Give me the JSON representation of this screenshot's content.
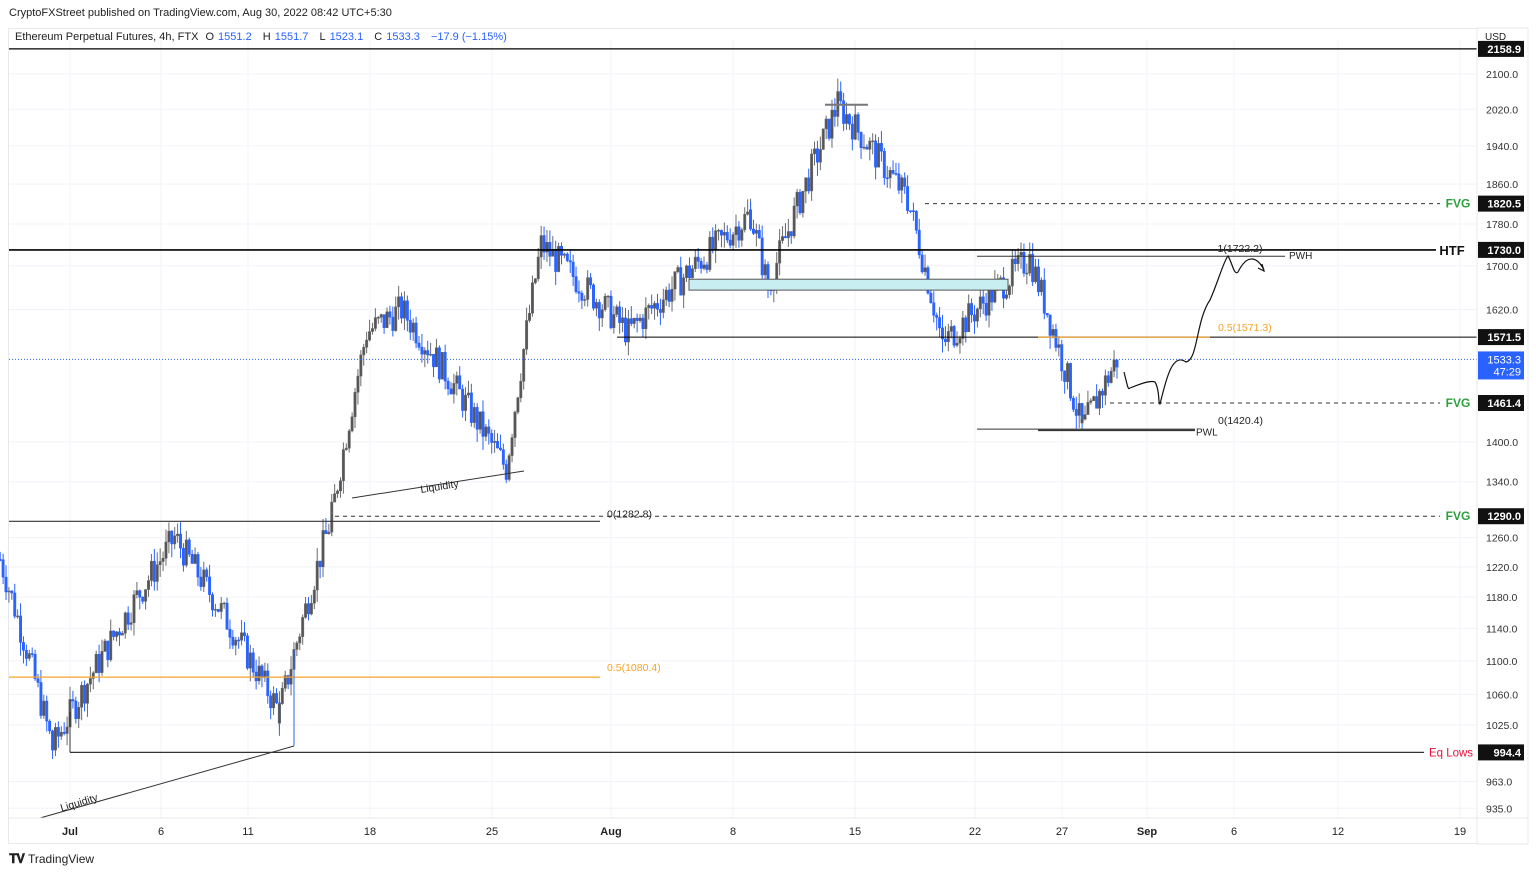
{
  "header": {
    "published": "CryptoFXStreet published on TradingView.com, Aug 30, 2022 08:42 UTC+5:30",
    "symbol": "Ethereum Perpetual Futures, 4h, FTX",
    "open_label": "O",
    "open": "1551.2",
    "high_label": "H",
    "high": "1551.7",
    "low_label": "L",
    "low": "1523.1",
    "close_label": "C",
    "close": "1533.3",
    "change": "−17.9 (−1.15%)"
  },
  "footer": {
    "brand": "TradingView",
    "logo_icon": "tradingview-logo-icon"
  },
  "colors": {
    "up": "#6b6b6b",
    "down": "#2962ff",
    "grid": "#f0f3fa",
    "fib_mid": "#f7a428",
    "fvg": "#2e9e3e",
    "eq_lows": "#e8113a",
    "ob_fill": "#c8eef2",
    "last_price": "#2962ff"
  },
  "chart_data": {
    "type": "candlestick",
    "title": "Ethereum Perpetual Futures, 4h, FTX",
    "xlabel": "",
    "ylabel": "USD",
    "y_scale": "log",
    "ylim": [
      920,
      2185
    ],
    "x_ticks": [
      "Jul",
      "6",
      "11",
      "18",
      "25",
      "Aug",
      "8",
      "15",
      "22",
      "27",
      "Sep",
      "6",
      "12",
      "19"
    ],
    "y_ticks": [
      2100.0,
      2020.0,
      1940.0,
      1860.0,
      1780.0,
      1700.0,
      1620.0,
      1400.0,
      1340.0,
      1260.0,
      1220.0,
      1180.0,
      1140.0,
      1100.0,
      1060.0,
      1025.0,
      963.0,
      935.0
    ],
    "last_price": {
      "value": 1533.3,
      "countdown": "47:29"
    },
    "ohlc_last": {
      "open": 1551.2,
      "high": 1551.7,
      "low": 1523.1,
      "close": 1533.3,
      "change": -17.9,
      "change_pct": -1.15
    },
    "approx_path": [
      {
        "date": "Jun 27",
        "price": 1230
      },
      {
        "date": "Jun 30",
        "price": 1000
      },
      {
        "date": "Jul 7",
        "price": 1260
      },
      {
        "date": "Jul 13",
        "price": 1040
      },
      {
        "date": "Jul 16",
        "price": 1290
      },
      {
        "date": "Jul 18",
        "price": 1580
      },
      {
        "date": "Jul 20",
        "price": 1620
      },
      {
        "date": "Jul 26",
        "price": 1360
      },
      {
        "date": "Jul 28",
        "price": 1740
      },
      {
        "date": "Aug 2",
        "price": 1580
      },
      {
        "date": "Aug 9",
        "price": 1800
      },
      {
        "date": "Aug 10",
        "price": 1660
      },
      {
        "date": "Aug 14",
        "price": 2030
      },
      {
        "date": "Aug 18",
        "price": 1830
      },
      {
        "date": "Aug 20",
        "price": 1560
      },
      {
        "date": "Aug 25",
        "price": 1715
      },
      {
        "date": "Aug 28",
        "price": 1420
      },
      {
        "date": "Aug 30",
        "price": 1533
      }
    ],
    "horizontal_levels": [
      {
        "label": "",
        "price": 2158.9,
        "style": "solid",
        "color": "#000000"
      },
      {
        "label": "FVG",
        "price": 1820.5,
        "style": "dashed",
        "color": "#2e9e3e"
      },
      {
        "label": "HTF",
        "price": 1730.0,
        "style": "solid",
        "color": "#000000"
      },
      {
        "label": "",
        "price": 1571.5,
        "style": "solid",
        "color": "#000000"
      },
      {
        "label": "FVG",
        "price": 1461.4,
        "style": "dashed",
        "color": "#2e9e3e"
      },
      {
        "label": "FVG",
        "price": 1290.0,
        "style": "dashed",
        "color": "#2e9e3e"
      },
      {
        "label": "Eq Lows",
        "price": 994.4,
        "style": "solid",
        "color": "#e8113a"
      }
    ],
    "annotations": [
      {
        "text": "1(1722.2)",
        "price": 1722.2
      },
      {
        "text": "PWH",
        "price": 1718
      },
      {
        "text": "0.5(1571.3)",
        "price": 1571.3,
        "color": "#f7a428"
      },
      {
        "text": "0(1420.4)",
        "price": 1420.4
      },
      {
        "text": "PWL",
        "price": 1418
      },
      {
        "text": "0(1282.8)",
        "price": 1282.8
      },
      {
        "text": "0.5(1080.4)",
        "price": 1080.4,
        "color": "#f7a428"
      },
      {
        "text": "Liquidity",
        "note": "trendline Jul 16-Jul 26 lows"
      },
      {
        "text": "Liquidity",
        "note": "trendline to Jul 13 low"
      }
    ],
    "order_block_zone": {
      "top": 1675,
      "bottom": 1655,
      "from": "Aug 5",
      "to": "Aug 25",
      "color": "#c8eef2"
    }
  },
  "price_axis_labels": {
    "unit": "USD",
    "level_2158": "2158.9",
    "level_1820": "1820.5",
    "level_1730": "1730.0",
    "level_1571": "1571.5",
    "level_1461": "1461.4",
    "level_1290": "1290.0",
    "level_994": "994.4",
    "last": "1533.3",
    "countdown": "47:29"
  }
}
